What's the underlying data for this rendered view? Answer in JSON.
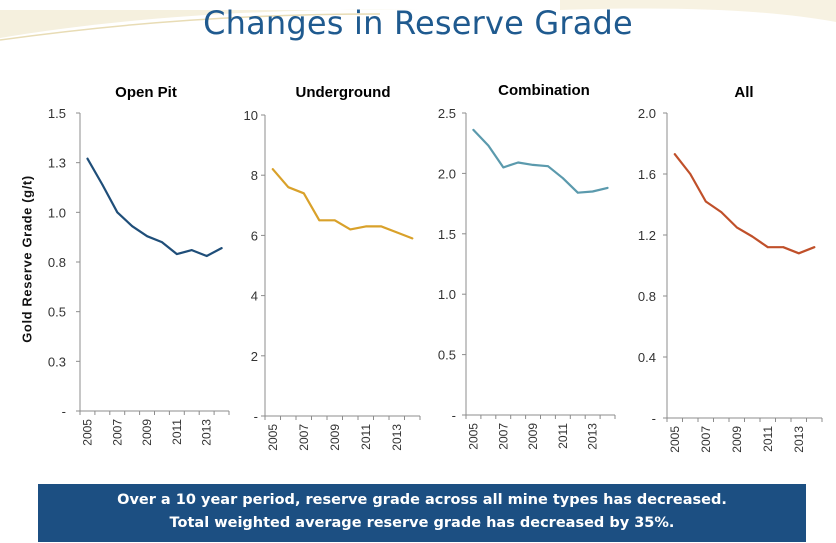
{
  "title": "Changes in Reserve Grade",
  "ylabel": "Gold Reserve Grade (g/t)",
  "footer": {
    "line1": "Over a 10 year period, reserve grade across all mine types has decreased.",
    "line2": "Total weighted average reserve grade has decreased by 35%."
  },
  "colors": {
    "title": "#1f5a8f",
    "footer_bg": "#1c4f82"
  },
  "chart_data": [
    {
      "type": "line",
      "title": "Open Pit",
      "x": [
        2005,
        2006,
        2007,
        2008,
        2009,
        2010,
        2011,
        2012,
        2013,
        2014
      ],
      "ytick_labels": [
        "-",
        "0.3",
        "0.5",
        "0.8",
        "1.0",
        "1.3",
        "1.5"
      ],
      "ylim": [
        0,
        1.5
      ],
      "xtick_labels": [
        "2005",
        "2007",
        "2009",
        "2011",
        "2013"
      ],
      "series": [
        {
          "values": [
            1.27,
            1.14,
            1.0,
            0.93,
            0.88,
            0.85,
            0.79,
            0.81,
            0.78,
            0.82
          ],
          "color": "#1f4e79"
        }
      ]
    },
    {
      "type": "line",
      "title": "Underground",
      "x": [
        2005,
        2006,
        2007,
        2008,
        2009,
        2010,
        2011,
        2012,
        2013,
        2014
      ],
      "ytick_labels": [
        "-",
        "2",
        "4",
        "6",
        "8",
        "10"
      ],
      "ylim": [
        0,
        10
      ],
      "xtick_labels": [
        "2005",
        "2007",
        "2009",
        "2011",
        "2013"
      ],
      "series": [
        {
          "values": [
            8.2,
            7.6,
            7.4,
            6.5,
            6.5,
            6.2,
            6.3,
            6.3,
            6.1,
            5.9
          ],
          "color": "#d9a12a"
        }
      ]
    },
    {
      "type": "line",
      "title": "Combination",
      "x": [
        2005,
        2006,
        2007,
        2008,
        2009,
        2010,
        2011,
        2012,
        2013,
        2014
      ],
      "ytick_labels": [
        "-",
        "0.5",
        "1.0",
        "1.5",
        "2.0",
        "2.5"
      ],
      "ylim": [
        0,
        2.5
      ],
      "xtick_labels": [
        "2005",
        "2007",
        "2009",
        "2011",
        "2013"
      ],
      "series": [
        {
          "values": [
            2.36,
            2.23,
            2.05,
            2.09,
            2.07,
            2.06,
            1.96,
            1.84,
            1.85,
            1.88
          ],
          "color": "#5b9aad"
        }
      ]
    },
    {
      "type": "line",
      "title": "All",
      "x": [
        2005,
        2006,
        2007,
        2008,
        2009,
        2010,
        2011,
        2012,
        2013,
        2014
      ],
      "ytick_labels": [
        "-",
        "0.4",
        "0.8",
        "1.2",
        "1.6",
        "2.0"
      ],
      "ylim": [
        0,
        2.0
      ],
      "xtick_labels": [
        "2005",
        "2007",
        "2009",
        "2011",
        "2013"
      ],
      "series": [
        {
          "values": [
            1.73,
            1.6,
            1.42,
            1.35,
            1.25,
            1.19,
            1.12,
            1.12,
            1.08,
            1.12
          ],
          "color": "#c0502a"
        }
      ]
    }
  ]
}
